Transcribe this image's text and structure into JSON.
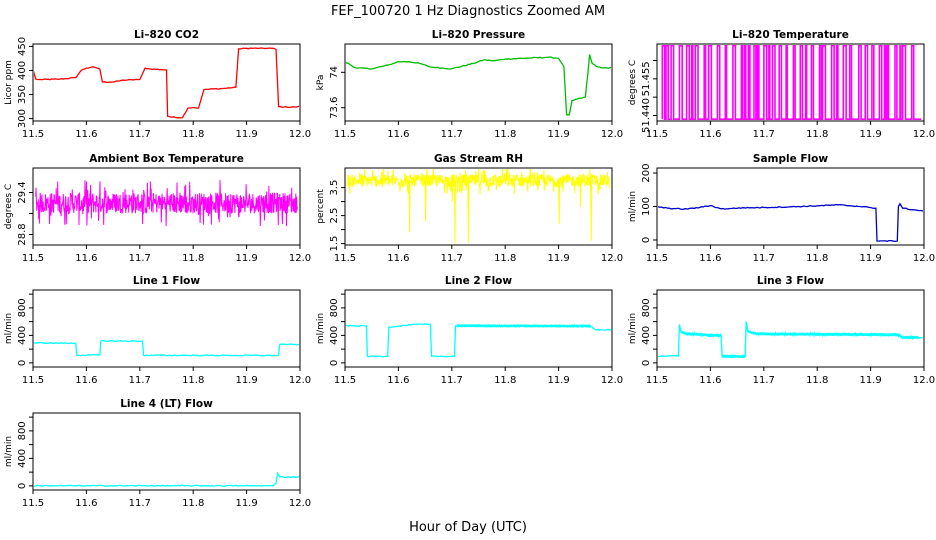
{
  "figure": {
    "title": "FEF_100720  1 Hz Diagnostics Zoomed AM",
    "xlabel": "Hour of Day (UTC)"
  },
  "chart_data": [
    {
      "type": "line",
      "title": "Li–820 CO2",
      "ylabel": "Licor ppm",
      "color": "#ff0000",
      "xlim": [
        11.5,
        12.0
      ],
      "ylim": [
        295,
        455
      ],
      "yticks": [
        300,
        350,
        400,
        450
      ],
      "x": [
        11.5,
        11.505,
        11.51,
        11.55,
        11.58,
        11.59,
        11.6,
        11.615,
        11.625,
        11.63,
        11.65,
        11.66,
        11.67,
        11.7,
        11.71,
        11.72,
        11.74,
        11.75,
        11.752,
        11.76,
        11.78,
        11.79,
        11.8,
        11.81,
        11.82,
        11.84,
        11.85,
        11.86,
        11.88,
        11.885,
        11.9,
        11.95,
        11.955,
        11.96,
        11.97,
        11.99,
        12.0
      ],
      "y": [
        402,
        382,
        381,
        382,
        385,
        400,
        405,
        407,
        403,
        376,
        376,
        378,
        380,
        381,
        405,
        403,
        402,
        401,
        305,
        303,
        302,
        322,
        323,
        322,
        360,
        362,
        362,
        363,
        365,
        445,
        446,
        446,
        444,
        325,
        324,
        324,
        325
      ]
    },
    {
      "type": "line",
      "title": "Li–820 Pressure",
      "ylabel": "kPa",
      "color": "#00bb00",
      "xlim": [
        11.5,
        12.0
      ],
      "ylim": [
        73.45,
        74.32
      ],
      "yticks": [
        73.6,
        74.0
      ],
      "x": [
        11.5,
        11.52,
        11.55,
        11.58,
        11.6,
        11.62,
        11.64,
        11.66,
        11.7,
        11.74,
        11.76,
        11.78,
        11.8,
        11.84,
        11.88,
        11.9,
        11.91,
        11.915,
        11.92,
        11.925,
        11.95,
        11.955,
        11.958,
        11.96,
        11.963,
        11.97,
        11.98,
        12.0
      ],
      "y": [
        74.12,
        74.05,
        74.04,
        74.08,
        74.12,
        74.12,
        74.1,
        74.06,
        74.04,
        74.1,
        74.14,
        74.13,
        74.15,
        74.16,
        74.17,
        74.16,
        74.06,
        73.52,
        73.52,
        73.68,
        73.72,
        74.0,
        74.2,
        74.16,
        74.1,
        74.07,
        74.05,
        74.05
      ]
    },
    {
      "type": "line",
      "title": "Li–820 Temperature",
      "ylabel": "degrees C",
      "color": "#ff00ff",
      "xlim": [
        11.5,
        12.0
      ],
      "ylim": [
        51.4385,
        51.4595
      ],
      "yticks": [
        51.44,
        51.445,
        51.45,
        51.455
      ],
      "yticklabels": [
        "51.440",
        "",
        "51.455",
        ""
      ],
      "base": 51.439,
      "high": 51.459,
      "pattern": "switch"
    },
    {
      "type": "line",
      "title": "Ambient Box Temperature",
      "ylabel": "degrees C",
      "color": "#ff00ff",
      "xlim": [
        11.5,
        12.0
      ],
      "ylim": [
        28.65,
        29.75
      ],
      "yticks": [
        28.8,
        29.1,
        29.4
      ],
      "yticklabels": [
        "28.8",
        "",
        "29.4"
      ],
      "center": 29.25,
      "band": 0.3,
      "pattern": "noise"
    },
    {
      "type": "line",
      "title": "Gas Stream RH",
      "ylabel": "percent",
      "color": "#ffff00",
      "xlim": [
        11.5,
        12.0
      ],
      "ylim": [
        1.45,
        4.2
      ],
      "yticks": [
        1.5,
        2.5,
        3.5
      ],
      "yticklabels": [
        "1.5",
        "2.5",
        "3.5"
      ],
      "minor_yticks": [
        2.0,
        3.0
      ],
      "center": 3.75,
      "band": 0.45,
      "pattern": "noise",
      "dips": [
        [
          11.62,
          1.9
        ],
        [
          11.65,
          2.3
        ],
        [
          11.7,
          3.0
        ],
        [
          11.705,
          1.5
        ],
        [
          11.73,
          1.55
        ],
        [
          11.9,
          2.2
        ],
        [
          11.94,
          2.8
        ],
        [
          11.96,
          1.6
        ]
      ]
    },
    {
      "type": "line",
      "title": "Sample Flow",
      "ylabel": "ml/min",
      "color": "#0000cc",
      "xlim": [
        11.5,
        12.0
      ],
      "ylim": [
        -15,
        215
      ],
      "yticks": [
        0,
        100,
        200
      ],
      "x": [
        11.5,
        11.505,
        11.52,
        11.55,
        11.58,
        11.6,
        11.62,
        11.64,
        11.66,
        11.7,
        11.75,
        11.8,
        11.84,
        11.88,
        11.9,
        11.91,
        11.912,
        11.95,
        11.952,
        11.955,
        11.96,
        11.98,
        12.0
      ],
      "y": [
        100,
        98,
        95,
        92,
        97,
        103,
        93,
        94,
        96,
        97,
        99,
        102,
        105,
        100,
        97,
        95,
        -3,
        -3,
        100,
        108,
        95,
        90,
        87
      ]
    },
    {
      "type": "line",
      "title": "Line 1 Flow",
      "ylabel": "ml/min",
      "color": "#00ffff",
      "xlim": [
        11.5,
        12.0
      ],
      "ylim": [
        -60,
        1060
      ],
      "yticks": [
        0,
        400,
        800
      ],
      "minor_yticks": [
        200,
        600,
        1000
      ],
      "x": [
        11.5,
        11.58,
        11.582,
        11.625,
        11.627,
        11.705,
        11.707,
        11.95,
        11.96,
        11.962,
        12.0
      ],
      "y": [
        290,
        285,
        110,
        115,
        320,
        315,
        110,
        108,
        110,
        270,
        265
      ]
    },
    {
      "type": "line",
      "title": "Line 2 Flow",
      "ylabel": "ml/min",
      "color": "#00ffff",
      "xlim": [
        11.5,
        12.0
      ],
      "ylim": [
        -60,
        1060
      ],
      "yticks": [
        0,
        400,
        800
      ],
      "minor_yticks": [
        200,
        600,
        1000
      ],
      "x": [
        11.5,
        11.54,
        11.542,
        11.58,
        11.582,
        11.63,
        11.66,
        11.662,
        11.705,
        11.707,
        11.96,
        11.97,
        12.0
      ],
      "y": [
        540,
        538,
        95,
        95,
        520,
        560,
        560,
        95,
        95,
        540,
        535,
        480,
        480
      ],
      "band_from": 11.71,
      "band_to": 11.96,
      "band": 45
    },
    {
      "type": "line",
      "title": "Line 3 Flow",
      "ylabel": "ml/min",
      "color": "#00ffff",
      "xlim": [
        11.5,
        12.0
      ],
      "ylim": [
        -60,
        1060
      ],
      "yticks": [
        0,
        400,
        800
      ],
      "minor_yticks": [
        200,
        600,
        1000
      ],
      "x": [
        11.5,
        11.54,
        11.542,
        11.545,
        11.555,
        11.57,
        11.6,
        11.62,
        11.622,
        11.665,
        11.667,
        11.67,
        11.68,
        11.7,
        11.95,
        11.96,
        12.0
      ],
      "y": [
        100,
        100,
        560,
        450,
        420,
        420,
        400,
        400,
        95,
        95,
        600,
        460,
        430,
        420,
        410,
        370,
        370
      ],
      "band_from": 11.545,
      "band_to": 11.99,
      "band": 50
    },
    {
      "type": "line",
      "title": "Line 4 (LT) Flow",
      "ylabel": "ml/min",
      "color": "#00ffff",
      "xlim": [
        11.5,
        12.0
      ],
      "ylim": [
        -60,
        1060
      ],
      "yticks": [
        0,
        400,
        800
      ],
      "minor_yticks": [
        200,
        600,
        1000
      ],
      "x": [
        11.5,
        11.95,
        11.955,
        11.958,
        11.962,
        12.0
      ],
      "y": [
        2,
        2,
        40,
        180,
        130,
        130
      ]
    }
  ],
  "x_tick_labels": [
    "11.5",
    "11.6",
    "11.7",
    "11.8",
    "11.9",
    "12.0"
  ],
  "x_ticks": [
    11.5,
    11.6,
    11.7,
    11.8,
    11.9,
    12.0
  ]
}
